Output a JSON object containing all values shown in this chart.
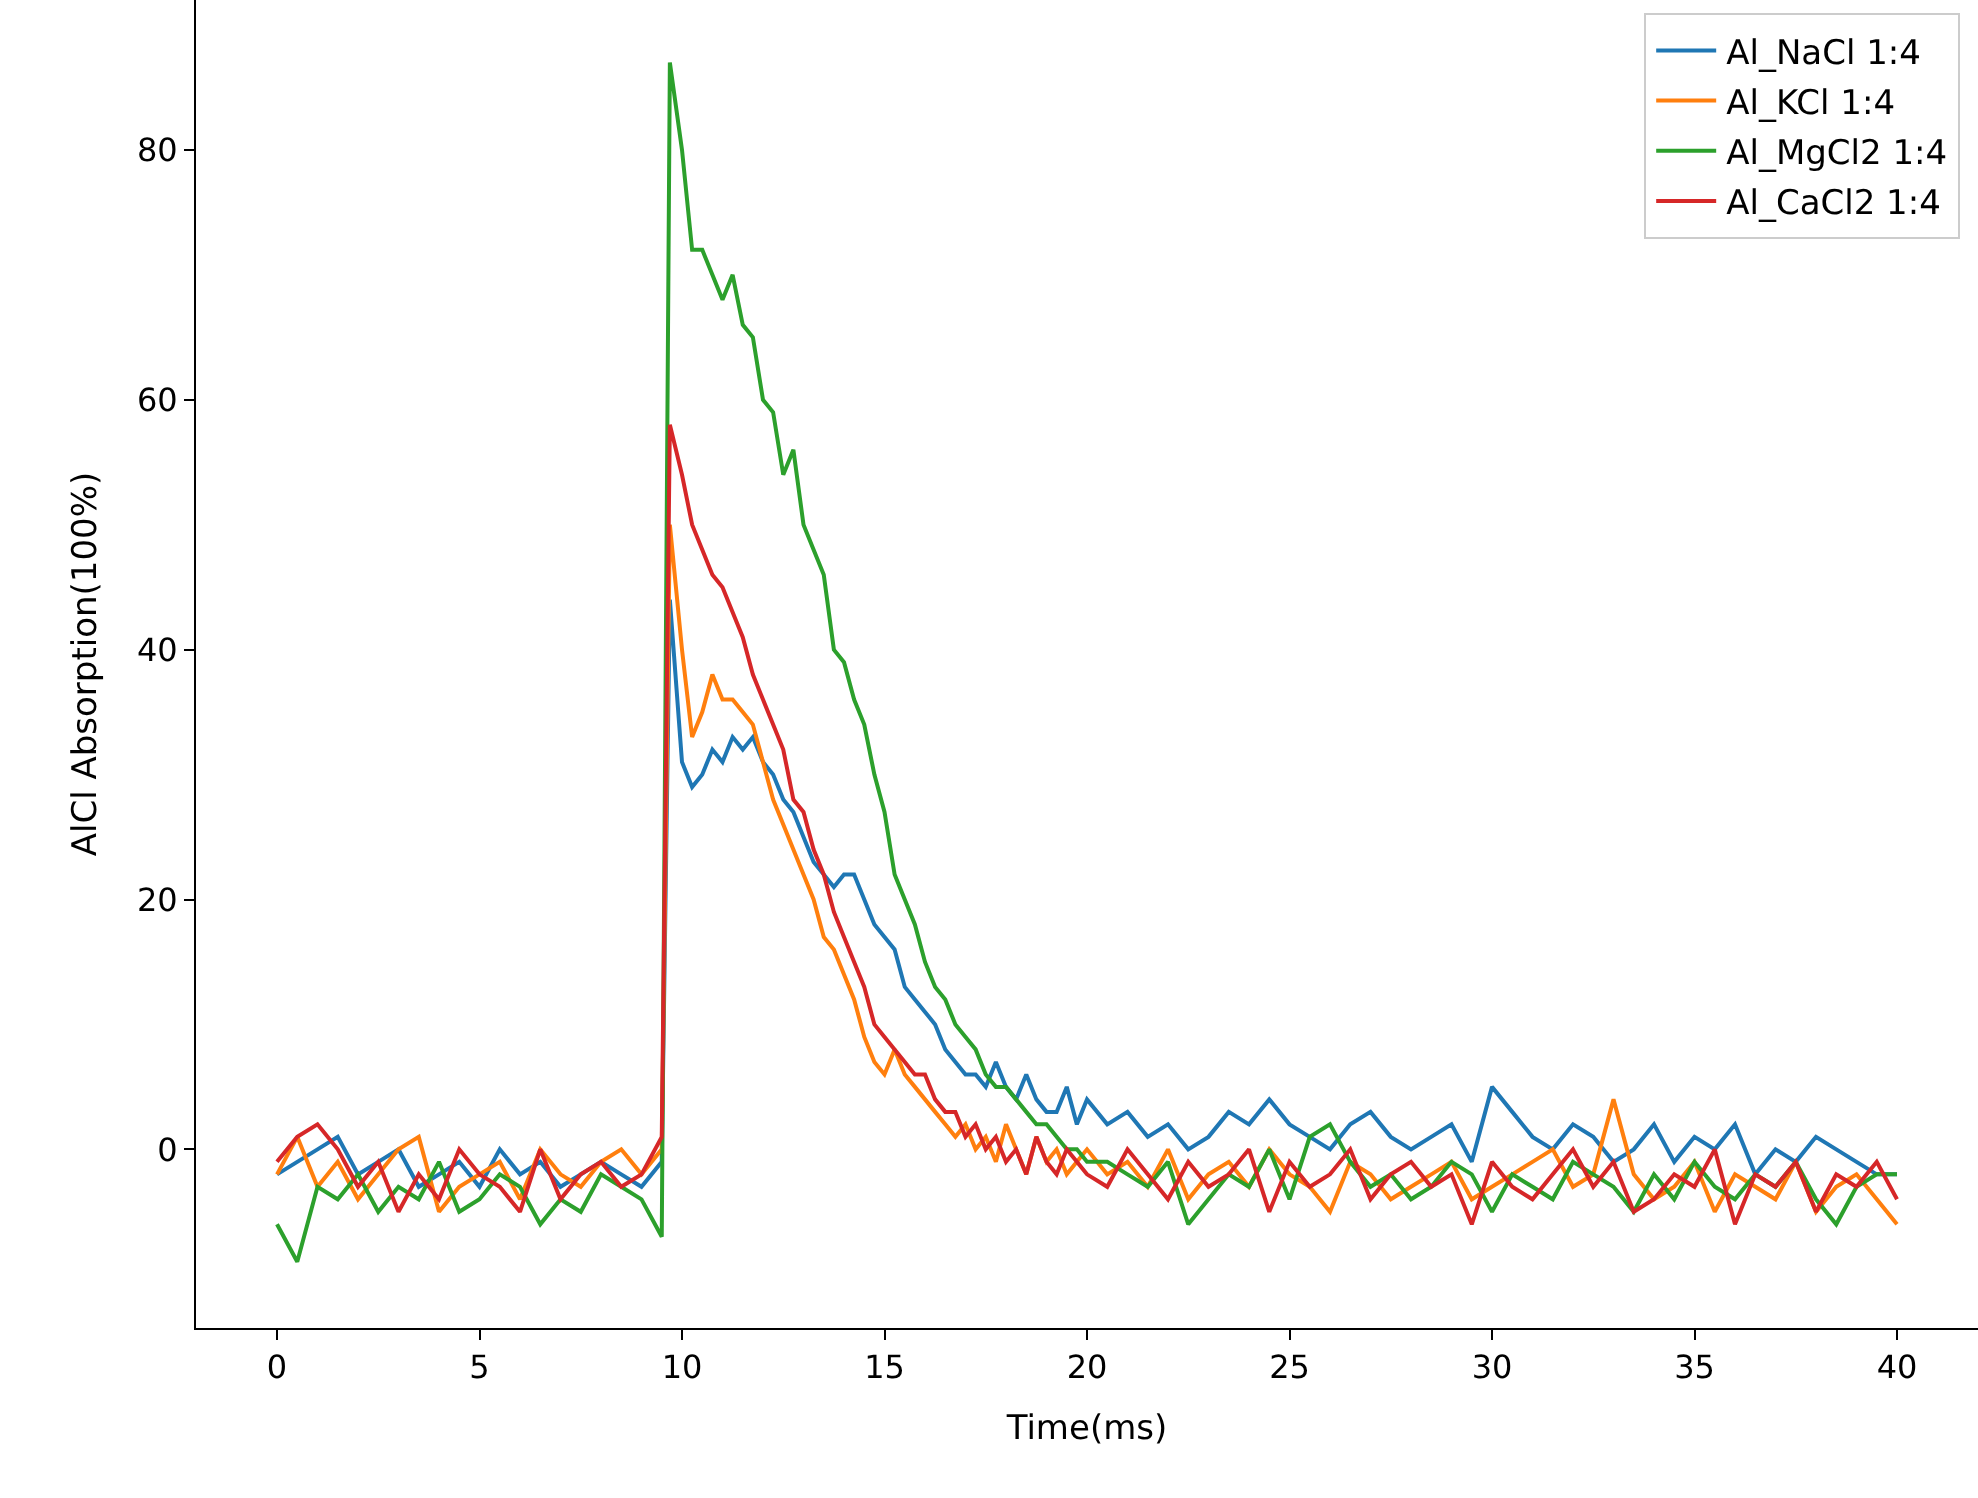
{
  "chart_data": {
    "type": "line",
    "xlabel": "Time(ms)",
    "ylabel": "AlCl Absorption(100%)",
    "x": [
      0,
      0.5,
      1,
      1.5,
      2,
      2.5,
      3,
      3.5,
      4,
      4.5,
      5,
      5.5,
      6,
      6.5,
      7,
      7.5,
      8,
      8.5,
      9,
      9.5,
      9.7,
      10,
      10.25,
      10.5,
      10.75,
      11,
      11.25,
      11.5,
      11.75,
      12,
      12.25,
      12.5,
      12.75,
      13,
      13.25,
      13.5,
      13.75,
      14,
      14.25,
      14.5,
      14.75,
      15,
      15.25,
      15.5,
      15.75,
      16,
      16.25,
      16.5,
      16.75,
      17,
      17.25,
      17.5,
      17.75,
      18,
      18.25,
      18.5,
      18.75,
      19,
      19.25,
      19.5,
      19.75,
      20,
      20.5,
      21,
      21.5,
      22,
      22.5,
      23,
      23.5,
      24,
      24.5,
      25,
      25.5,
      26,
      26.5,
      27,
      27.5,
      28,
      28.5,
      29,
      29.5,
      30,
      30.5,
      31,
      31.5,
      32,
      32.5,
      33,
      33.5,
      34,
      34.5,
      35,
      35.5,
      36,
      36.5,
      37,
      37.5,
      38,
      38.5,
      39,
      39.5,
      40
    ],
    "series": [
      {
        "name": "Al_NaCl 1:4",
        "color": "#1f77b4",
        "values": [
          -2,
          -1,
          0,
          1,
          -2,
          -1,
          0,
          -3,
          -2,
          -1,
          -3,
          0,
          -2,
          -1,
          -3,
          -2,
          -1,
          -2,
          -3,
          -1,
          44,
          31,
          29,
          30,
          32,
          31,
          33,
          32,
          33,
          31,
          30,
          28,
          27,
          25,
          23,
          22,
          21,
          22,
          22,
          20,
          18,
          17,
          16,
          13,
          12,
          11,
          10,
          8,
          7,
          6,
          6,
          5,
          7,
          5,
          4,
          6,
          4,
          3,
          3,
          5,
          2,
          4,
          2,
          3,
          1,
          2,
          0,
          1,
          3,
          2,
          4,
          2,
          1,
          0,
          2,
          3,
          1,
          0,
          1,
          2,
          -1,
          5,
          3,
          1,
          0,
          2,
          1,
          -1,
          0,
          2,
          -1,
          1,
          0,
          2,
          -2,
          0,
          -1,
          1,
          0,
          -1,
          -2,
          -2
        ]
      },
      {
        "name": "Al_KCl 1:4",
        "color": "#ff7f0e",
        "values": [
          -2,
          1,
          -3,
          -1,
          -4,
          -2,
          0,
          1,
          -5,
          -3,
          -2,
          -1,
          -4,
          0,
          -2,
          -3,
          -1,
          0,
          -2,
          0,
          50,
          40,
          33,
          35,
          38,
          36,
          36,
          35,
          34,
          31,
          28,
          26,
          24,
          22,
          20,
          17,
          16,
          14,
          12,
          9,
          7,
          6,
          8,
          6,
          5,
          4,
          3,
          2,
          1,
          2,
          0,
          1,
          -1,
          2,
          0,
          -2,
          1,
          -1,
          0,
          -2,
          -1,
          0,
          -2,
          -1,
          -3,
          0,
          -4,
          -2,
          -1,
          -3,
          0,
          -2,
          -3,
          -5,
          -1,
          -2,
          -4,
          -3,
          -2,
          -1,
          -4,
          -3,
          -2,
          -1,
          0,
          -3,
          -2,
          4,
          -2,
          -4,
          -3,
          -1,
          -5,
          -2,
          -3,
          -4,
          -1,
          -5,
          -3,
          -2,
          -4,
          -6
        ]
      },
      {
        "name": "Al_MgCl2 1:4",
        "color": "#2ca02c",
        "values": [
          -6,
          -9,
          -3,
          -4,
          -2,
          -5,
          -3,
          -4,
          -1,
          -5,
          -4,
          -2,
          -3,
          -6,
          -4,
          -5,
          -2,
          -3,
          -4,
          -7,
          87,
          80,
          72,
          72,
          70,
          68,
          70,
          66,
          65,
          60,
          59,
          54,
          56,
          50,
          48,
          46,
          40,
          39,
          36,
          34,
          30,
          27,
          22,
          20,
          18,
          15,
          13,
          12,
          10,
          9,
          8,
          6,
          5,
          5,
          4,
          3,
          2,
          2,
          1,
          0,
          0,
          -1,
          -1,
          -2,
          -3,
          -1,
          -6,
          -4,
          -2,
          -3,
          0,
          -4,
          1,
          2,
          -1,
          -3,
          -2,
          -4,
          -3,
          -1,
          -2,
          -5,
          -2,
          -3,
          -4,
          -1,
          -2,
          -3,
          -5,
          -2,
          -4,
          -1,
          -3,
          -4,
          -2,
          -3,
          -1,
          -4,
          -6,
          -3,
          -2,
          -2
        ]
      },
      {
        "name": "Al_CaCl2 1:4",
        "color": "#d62728",
        "values": [
          -1,
          1,
          2,
          0,
          -3,
          -1,
          -5,
          -2,
          -4,
          0,
          -2,
          -3,
          -5,
          0,
          -4,
          -2,
          -1,
          -3,
          -2,
          1,
          58,
          54,
          50,
          48,
          46,
          45,
          43,
          41,
          38,
          36,
          34,
          32,
          28,
          27,
          24,
          22,
          19,
          17,
          15,
          13,
          10,
          9,
          8,
          7,
          6,
          6,
          4,
          3,
          3,
          1,
          2,
          0,
          1,
          -1,
          0,
          -2,
          1,
          -1,
          -2,
          0,
          -1,
          -2,
          -3,
          0,
          -2,
          -4,
          -1,
          -3,
          -2,
          0,
          -5,
          -1,
          -3,
          -2,
          0,
          -4,
          -2,
          -1,
          -3,
          -2,
          -6,
          -1,
          -3,
          -4,
          -2,
          0,
          -3,
          -1,
          -5,
          -4,
          -2,
          -3,
          0,
          -6,
          -2,
          -3,
          -1,
          -5,
          -2,
          -3,
          -1,
          -4
        ]
      }
    ],
    "xlim": [
      -2,
      42
    ],
    "xticks": [
      0,
      5,
      10,
      15,
      20,
      25,
      30,
      35,
      40
    ],
    "ylim": [
      -14.3,
      92
    ],
    "yticks": [
      0,
      20,
      40,
      60,
      80
    ],
    "legend": "top right",
    "marker": "none",
    "line_style": "solid"
  }
}
